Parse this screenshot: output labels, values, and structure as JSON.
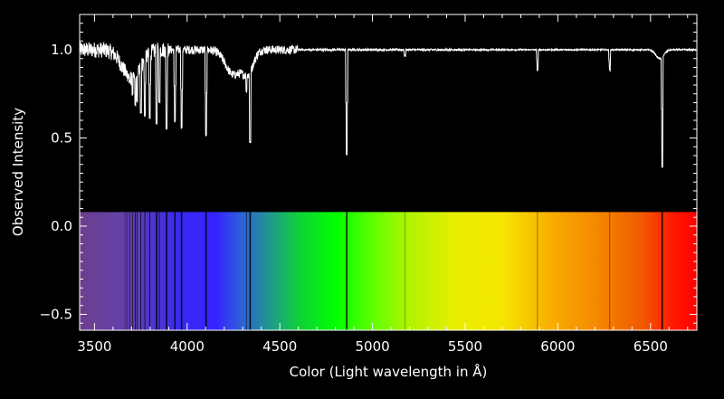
{
  "chart_data": {
    "type": "line",
    "xlabel": "Color (Light wavelength in Å)",
    "ylabel": "Observed Intensity",
    "xlim": [
      3420,
      6750
    ],
    "ylim": [
      -0.59,
      1.2
    ],
    "x_ticks": [
      3500,
      4000,
      4500,
      5000,
      5500,
      6000,
      6500
    ],
    "y_ticks": [
      1.0,
      0.5,
      0.0,
      -0.5
    ],
    "x_tick_labels": [
      "3500",
      "4000",
      "4500",
      "5000",
      "5500",
      "6000",
      "6500"
    ],
    "y_tick_labels": [
      "1.0",
      "0.5",
      "0.0",
      "−0.5"
    ],
    "grid": false,
    "continuum": 1.0,
    "spectrum_color": "#ffffff",
    "background": "#000000",
    "color_band": {
      "y_range": [
        -0.59,
        0.08
      ],
      "gradient_stops": [
        {
          "wavelength": 3420,
          "color": "#6c3f8e"
        },
        {
          "wavelength": 3700,
          "color": "#6140b0"
        },
        {
          "wavelength": 3950,
          "color": "#3b2af2"
        },
        {
          "wavelength": 4150,
          "color": "#3522ff"
        },
        {
          "wavelength": 4300,
          "color": "#2e64d8"
        },
        {
          "wavelength": 4450,
          "color": "#1e9a8a"
        },
        {
          "wavelength": 4600,
          "color": "#0fd03a"
        },
        {
          "wavelength": 4800,
          "color": "#00ff00"
        },
        {
          "wavelength": 5000,
          "color": "#5fff00"
        },
        {
          "wavelength": 5200,
          "color": "#b0f400"
        },
        {
          "wavelength": 5450,
          "color": "#e8ee00"
        },
        {
          "wavelength": 5700,
          "color": "#f5e600"
        },
        {
          "wavelength": 5950,
          "color": "#f8b000"
        },
        {
          "wavelength": 6200,
          "color": "#f58a00"
        },
        {
          "wavelength": 6450,
          "color": "#f05a00"
        },
        {
          "wavelength": 6620,
          "color": "#ff1a00"
        },
        {
          "wavelength": 6750,
          "color": "#ff0000"
        }
      ]
    },
    "absorption_lines": [
      {
        "wavelength": 3665,
        "depth": 0.93
      },
      {
        "wavelength": 3675,
        "depth": 0.88
      },
      {
        "wavelength": 3690,
        "depth": 0.81
      },
      {
        "wavelength": 3705,
        "depth": 0.74
      },
      {
        "wavelength": 3720,
        "depth": 0.68
      },
      {
        "wavelength": 3730,
        "depth": 0.7
      },
      {
        "wavelength": 3750,
        "depth": 0.64
      },
      {
        "wavelength": 3772,
        "depth": 0.62
      },
      {
        "wavelength": 3798,
        "depth": 0.61
      },
      {
        "wavelength": 3835,
        "depth": 0.58
      },
      {
        "wavelength": 3850,
        "depth": 0.7
      },
      {
        "wavelength": 3889,
        "depth": 0.55
      },
      {
        "wavelength": 3934,
        "depth": 0.59
      },
      {
        "wavelength": 3970,
        "depth": 0.55
      },
      {
        "wavelength": 4102,
        "depth": 0.51
      },
      {
        "wavelength": 4320,
        "depth": 0.76
      },
      {
        "wavelength": 4340,
        "depth": 0.47
      },
      {
        "wavelength": 4861,
        "depth": 0.4
      },
      {
        "wavelength": 5175,
        "depth": 0.96
      },
      {
        "wavelength": 5890,
        "depth": 0.88
      },
      {
        "wavelength": 6280,
        "depth": 0.88
      },
      {
        "wavelength": 6563,
        "depth": 0.33
      }
    ],
    "broad_features": [
      {
        "center": 3700,
        "width": 70,
        "depth": 0.16
      },
      {
        "center": 4250,
        "width": 60,
        "depth": 0.14
      },
      {
        "center": 4330,
        "width": 40,
        "depth": 0.12
      },
      {
        "center": 6550,
        "width": 30,
        "depth": 0.05
      }
    ],
    "noise": [
      {
        "from": 3420,
        "to": 3900,
        "amplitude": 0.045
      },
      {
        "from": 3900,
        "to": 4600,
        "amplitude": 0.025
      },
      {
        "from": 4600,
        "to": 5500,
        "amplitude": 0.006
      },
      {
        "from": 5500,
        "to": 6750,
        "amplitude": 0.004
      }
    ]
  }
}
